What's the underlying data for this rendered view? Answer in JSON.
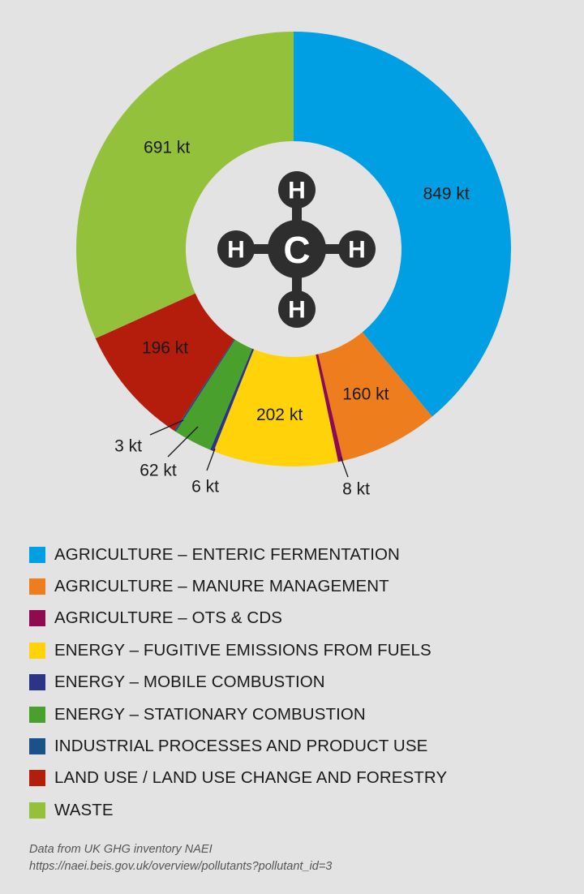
{
  "chart_data": {
    "type": "pie",
    "title": "",
    "categories": [
      "AGRICULTURE – ENTERIC FERMENTATION",
      "AGRICULTURE – MANURE MANAGEMENT",
      "AGRICULTURE – OTS & CDS",
      "ENERGY – FUGITIVE EMISSIONS FROM FUELS",
      "ENERGY – MOBILE COMBUSTION",
      "ENERGY – STATIONARY COMBUSTION",
      "INDUSTRIAL PROCESSES AND PRODUCT USE",
      "LAND USE / LAND USE CHANGE AND FORESTRY",
      "WASTE"
    ],
    "values": [
      849,
      160,
      8,
      202,
      6,
      62,
      3,
      196,
      691
    ],
    "data_labels": [
      "849 kt",
      "160 kt",
      "8 kt",
      "202 kt",
      "6 kt",
      "62 kt",
      "3 kt",
      "196 kt",
      "691 kt"
    ],
    "colors": [
      "#009fe3",
      "#ee7d1d",
      "#8d0b4e",
      "#ffd20a",
      "#2a3587",
      "#4aa02c",
      "#1a5189",
      "#b41d0c",
      "#94c13c"
    ],
    "legend_position": "bottom",
    "donut": true,
    "center_graphic": "methane-molecule",
    "center_atoms": {
      "center": "C",
      "outer": "H"
    }
  },
  "source": {
    "line1": "Data from UK GHG inventory NAEI",
    "line2": "https://naei.beis.gov.uk/overview/pollutants?pollutant_id=3"
  }
}
